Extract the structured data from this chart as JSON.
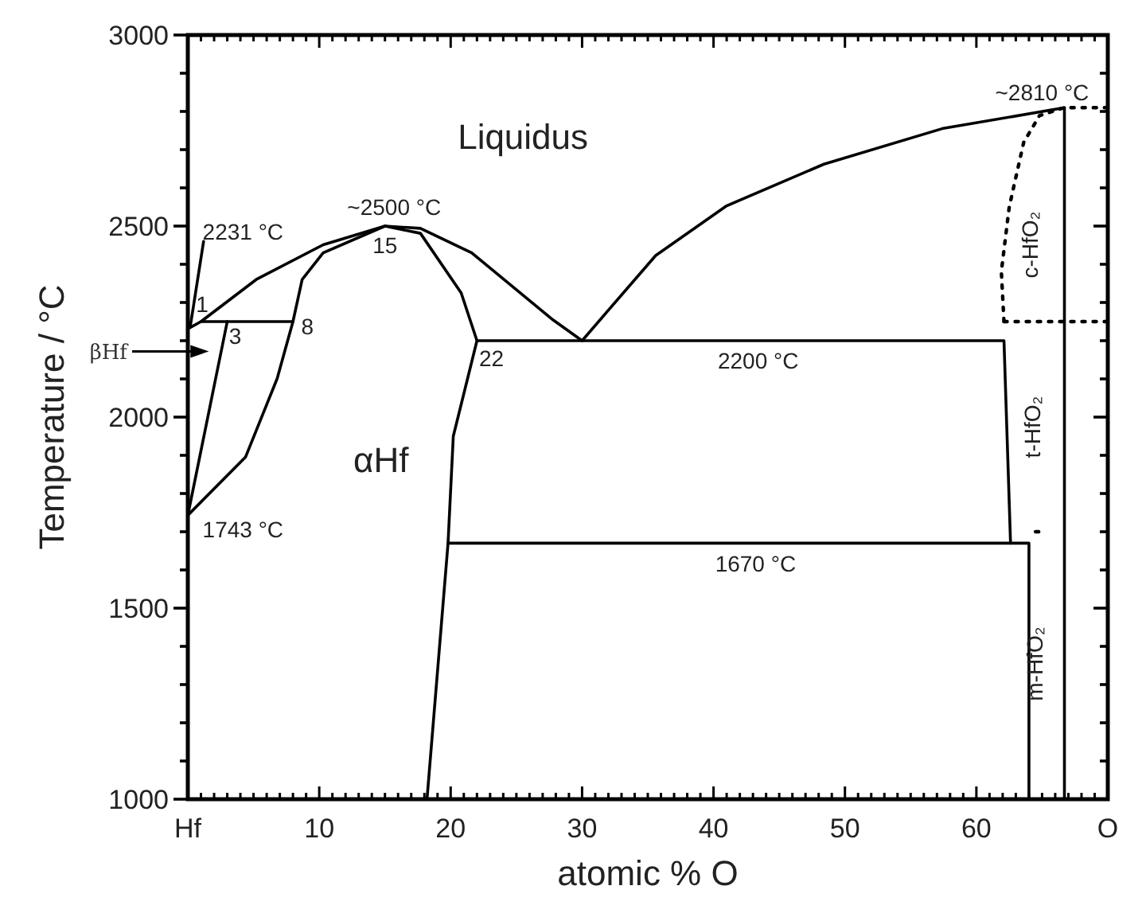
{
  "chart_data": {
    "type": "line",
    "xlabel": "atomic % O",
    "ylabel": "Temperature / °C",
    "xlim": [
      0,
      70
    ],
    "ylim": [
      1000,
      3000
    ],
    "xticks": [
      {
        "value": 0,
        "label": "Hf"
      },
      {
        "value": 1,
        "label": null
      },
      {
        "value": 2,
        "label": null
      },
      {
        "value": 3,
        "label": null
      },
      {
        "value": 4,
        "label": null
      },
      {
        "value": 5,
        "label": null
      },
      {
        "value": 6,
        "label": null
      },
      {
        "value": 7,
        "label": null
      },
      {
        "value": 8,
        "label": null
      },
      {
        "value": 9,
        "label": null
      },
      10,
      {
        "value": 11,
        "label": null
      },
      {
        "value": 12,
        "label": null
      },
      {
        "value": 13,
        "label": null
      },
      {
        "value": 14,
        "label": null
      },
      {
        "value": 15,
        "label": null
      },
      {
        "value": 16,
        "label": null
      },
      {
        "value": 17,
        "label": null
      },
      {
        "value": 18,
        "label": null
      },
      {
        "value": 19,
        "label": null
      },
      20,
      {
        "value": 21,
        "label": null
      },
      {
        "value": 22,
        "label": null
      },
      {
        "value": 23,
        "label": null
      },
      {
        "value": 24,
        "label": null
      },
      {
        "value": 25,
        "label": null
      },
      {
        "value": 26,
        "label": null
      },
      {
        "value": 27,
        "label": null
      },
      {
        "value": 28,
        "label": null
      },
      {
        "value": 29,
        "label": null
      },
      30,
      {
        "value": 31,
        "label": null
      },
      {
        "value": 32,
        "label": null
      },
      {
        "value": 33,
        "label": null
      },
      {
        "value": 34,
        "label": null
      },
      {
        "value": 35,
        "label": null
      },
      {
        "value": 36,
        "label": null
      },
      {
        "value": 37,
        "label": null
      },
      {
        "value": 38,
        "label": null
      },
      {
        "value": 39,
        "label": null
      },
      40,
      {
        "value": 41,
        "label": null
      },
      {
        "value": 42,
        "label": null
      },
      {
        "value": 43,
        "label": null
      },
      {
        "value": 44,
        "label": null
      },
      {
        "value": 45,
        "label": null
      },
      {
        "value": 46,
        "label": null
      },
      {
        "value": 47,
        "label": null
      },
      {
        "value": 48,
        "label": null
      },
      {
        "value": 49,
        "label": null
      },
      50,
      {
        "value": 51,
        "label": null
      },
      {
        "value": 52,
        "label": null
      },
      {
        "value": 53,
        "label": null
      },
      {
        "value": 54,
        "label": null
      },
      {
        "value": 55,
        "label": null
      },
      {
        "value": 56,
        "label": null
      },
      {
        "value": 57,
        "label": null
      },
      {
        "value": 58,
        "label": null
      },
      {
        "value": 59,
        "label": null
      },
      60,
      {
        "value": 61,
        "label": null
      },
      {
        "value": 62,
        "label": null
      },
      {
        "value": 63,
        "label": null
      },
      {
        "value": 64,
        "label": null
      },
      {
        "value": 65,
        "label": null
      },
      {
        "value": 66,
        "label": null
      },
      {
        "value": 67,
        "label": null
      },
      {
        "value": 68,
        "label": null
      },
      {
        "value": 69,
        "label": null
      },
      {
        "value": 70,
        "label": "O"
      }
    ],
    "yticks": [
      1000,
      {
        "value": 1100,
        "label": null
      },
      {
        "value": 1200,
        "label": null
      },
      {
        "value": 1300,
        "label": null
      },
      {
        "value": 1400,
        "label": null
      },
      1500,
      {
        "value": 1600,
        "label": null
      },
      {
        "value": 1700,
        "label": null
      },
      {
        "value": 1800,
        "label": null
      },
      {
        "value": 1900,
        "label": null
      },
      2000,
      {
        "value": 2100,
        "label": null
      },
      {
        "value": 2200,
        "label": null
      },
      {
        "value": 2300,
        "label": null
      },
      {
        "value": 2400,
        "label": null
      },
      2500,
      {
        "value": 2600,
        "label": null
      },
      {
        "value": 2700,
        "label": null
      },
      {
        "value": 2800,
        "label": null
      },
      {
        "value": 2900,
        "label": null
      },
      3000
    ],
    "grid": false,
    "marker": "none",
    "series": [
      {
        "color": "#000000",
        "x": [
          0,
          1,
          5.2,
          10.3,
          15,
          17.7,
          21.6,
          27.8,
          30
        ],
        "values": [
          2231,
          2250,
          2360,
          2451,
          2500,
          2494,
          2430,
          2254,
          2200
        ]
      },
      {
        "color": "#000000",
        "x": [
          30,
          35.6,
          41,
          48.4,
          57.4,
          66.7
        ],
        "values": [
          2200,
          2423,
          2553,
          2662,
          2755,
          2810
        ]
      },
      {
        "color": "#000000",
        "x": [
          0,
          4.4,
          6.8,
          8,
          8.7,
          10.3,
          15,
          17.7,
          20.8,
          22,
          20.2,
          19.8,
          18.2
        ],
        "values": [
          1743,
          1896,
          2101,
          2250,
          2360,
          2430,
          2500,
          2481,
          2325,
          2200,
          1950,
          1670,
          1000
        ]
      },
      {
        "color": "#000000",
        "x": [
          0,
          3
        ],
        "values": [
          1743,
          2250
        ]
      },
      {
        "color": "#000000",
        "x": [
          1,
          8
        ],
        "values": [
          2250,
          2250
        ]
      },
      {
        "color": "#000000",
        "x": [
          22,
          62.1,
          62.6
        ],
        "values": [
          2200,
          2200,
          1670
        ]
      },
      {
        "color": "#000000",
        "x": [
          19.8,
          64,
          64
        ],
        "values": [
          1670,
          1670,
          1000
        ]
      },
      {
        "color": "#000000",
        "x": [
          66.7,
          66.7
        ],
        "values": [
          1000,
          2810
        ]
      },
      {
        "color": "#000000",
        "x": [
          0.2,
          1.2
        ],
        "values": [
          2240,
          2460
        ]
      },
      {
        "color": "#000000",
        "line_style": "dotted",
        "x": [
          62.1,
          61.9,
          62.5,
          63.6,
          64.8,
          66.7,
          70
        ],
        "values": [
          2250,
          2381,
          2550,
          2719,
          2789,
          2810,
          2810
        ]
      },
      {
        "color": "#000000",
        "line_style": "dotted",
        "x": [
          62.1,
          70
        ],
        "values": [
          2250,
          2250
        ]
      },
      {
        "color": "#000000",
        "line_style": "dotted",
        "x": [
          64.5,
          65.2
        ],
        "values": [
          1700,
          1700
        ]
      }
    ],
    "annotations": [
      "Liquidus",
      "αHf",
      "βHf",
      "2231 °C",
      "1",
      "3",
      "8",
      "~2500 °C",
      "15",
      "22",
      "1743 °C",
      "2200 °C",
      "1670 °C",
      "~2810 °C",
      "c-HfO₂",
      "t-HfO₂",
      "m-HfO₂"
    ]
  }
}
